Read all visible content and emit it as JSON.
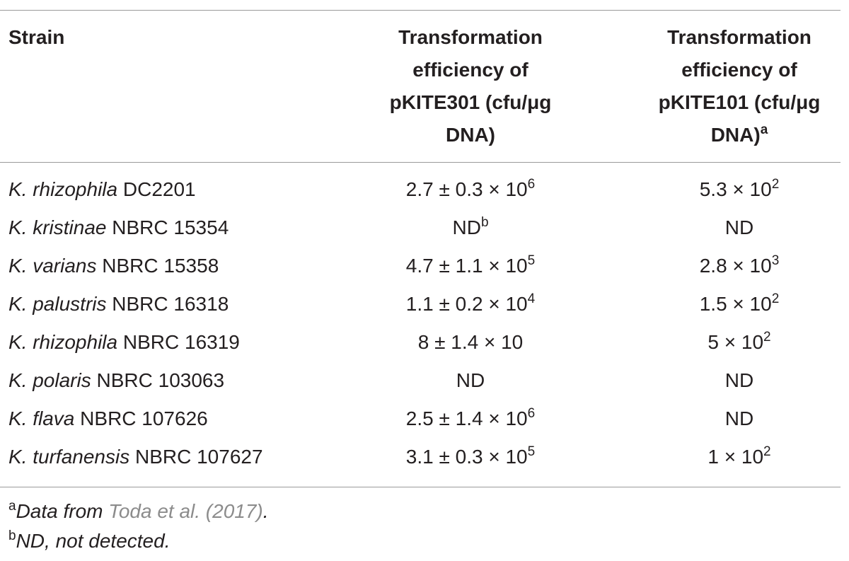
{
  "table": {
    "headers": [
      {
        "text": "Strain"
      },
      {
        "text": "Transformation efficiency of pKITE301 (cfu/μg DNA)"
      },
      {
        "text": "Transformation efficiency of pKITE101 (cfu/μg DNA)",
        "sup": "a"
      }
    ],
    "rows": [
      [
        {
          "italic": "K. rhizophila",
          "text": "DC2201"
        },
        {
          "text": "2.7 ± 0.3 × 10",
          "sup": "6"
        },
        {
          "text": "5.3 × 10",
          "sup": "2"
        }
      ],
      [
        {
          "italic": "K. kristinae",
          "text": "NBRC 15354"
        },
        {
          "text": "ND",
          "sup": "b"
        },
        {
          "text": "ND"
        }
      ],
      [
        {
          "italic": "K. varians",
          "text": "NBRC 15358"
        },
        {
          "text": "4.7 ± 1.1 × 10",
          "sup": "5"
        },
        {
          "text": "2.8 × 10",
          "sup": "3"
        }
      ],
      [
        {
          "italic": "K. palustris",
          "text": "NBRC 16318"
        },
        {
          "text": "1.1 ± 0.2 × 10",
          "sup": "4"
        },
        {
          "text": "1.5 × 10",
          "sup": "2"
        }
      ],
      [
        {
          "italic": "K. rhizophila",
          "text": "NBRC 16319"
        },
        {
          "text": "8 ± 1.4 × 10"
        },
        {
          "text": "5 × 10",
          "sup": "2"
        }
      ],
      [
        {
          "italic": "K. polaris",
          "text": "NBRC 103063"
        },
        {
          "text": "ND"
        },
        {
          "text": "ND"
        }
      ],
      [
        {
          "italic": "K. flava",
          "text": "NBRC 107626"
        },
        {
          "text": "2.5 ± 1.4 × 10",
          "sup": "6"
        },
        {
          "text": "ND"
        }
      ],
      [
        {
          "italic": "K. turfanensis",
          "text": "NBRC 107627"
        },
        {
          "text": "3.1 ± 0.3 × 10",
          "sup": "5"
        },
        {
          "text": "1 × 10",
          "sup": "2"
        }
      ]
    ]
  },
  "footnotes": [
    {
      "sup": "a",
      "text": "Data from",
      "ref": "Toda et al. (2017)",
      "end": "."
    },
    {
      "sup": "b",
      "text": "ND, not detected."
    }
  ]
}
